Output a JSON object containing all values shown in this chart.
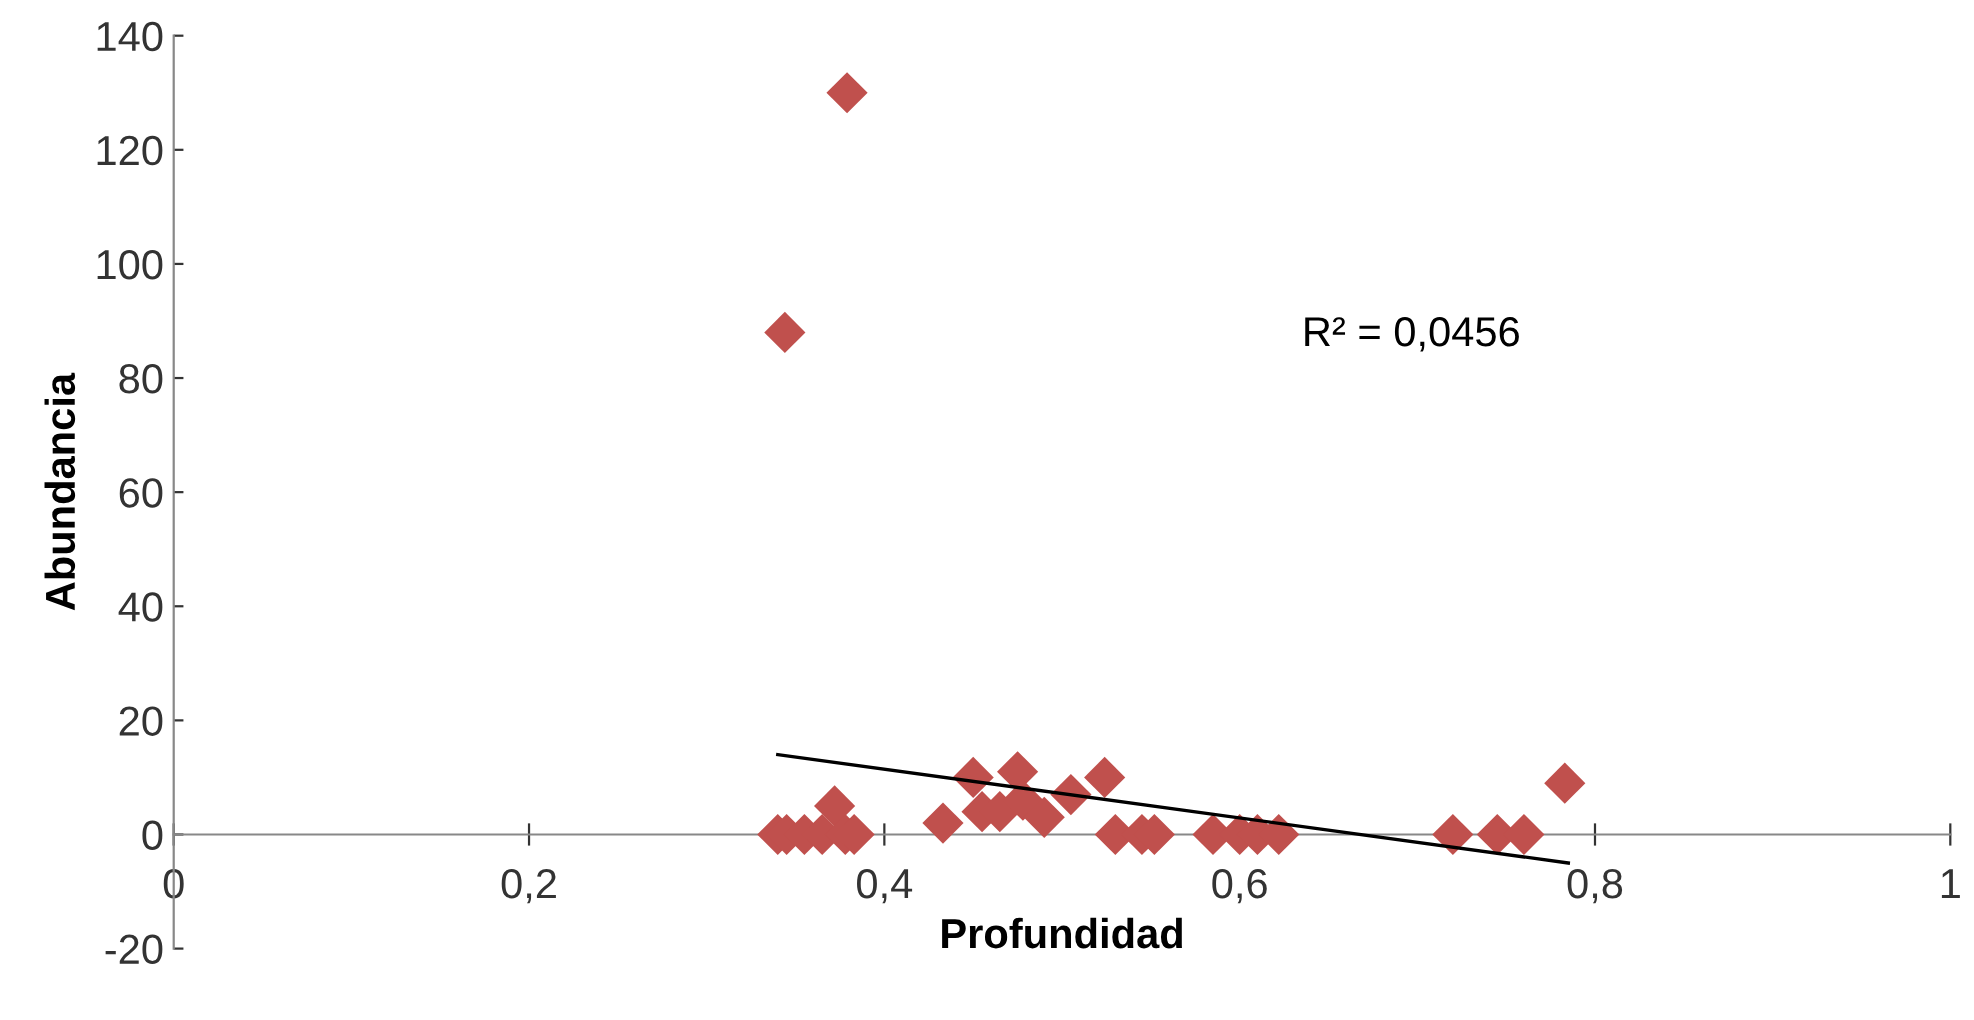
{
  "chart_data": {
    "type": "scatter",
    "xlabel": "Profundidad",
    "ylabel": "Abundancia",
    "annotations": [
      "R² = 0,0456"
    ],
    "xlim": [
      0,
      1
    ],
    "ylim": [
      -20,
      140
    ],
    "xticks": [
      {
        "value": 0,
        "label": "0"
      },
      {
        "value": 0.2,
        "label": "0,2"
      },
      {
        "value": 0.4,
        "label": "0,4"
      },
      {
        "value": 0.6,
        "label": "0,6"
      },
      {
        "value": 0.8,
        "label": "0,8"
      },
      {
        "value": 1,
        "label": "1"
      }
    ],
    "yticks": [
      -20,
      0,
      20,
      40,
      60,
      80,
      100,
      120,
      140
    ],
    "grid": false,
    "legend": false,
    "series": [
      {
        "marker": "diamond",
        "color": "#c0504d",
        "x": [
          0.34,
          0.345,
          0.355,
          0.365,
          0.372,
          0.378,
          0.383,
          0.344,
          0.379,
          0.433,
          0.45,
          0.455,
          0.465,
          0.475,
          0.478,
          0.49,
          0.505,
          0.524,
          0.53,
          0.545,
          0.552,
          0.585,
          0.6,
          0.61,
          0.622,
          0.72,
          0.745,
          0.76,
          0.783
        ],
        "values": [
          0,
          0,
          0,
          0,
          5,
          0,
          0,
          88,
          130,
          2,
          10,
          4,
          4,
          11,
          6,
          3,
          7,
          10,
          0,
          0,
          0,
          0,
          0,
          0,
          0,
          0,
          0,
          0,
          9
        ]
      },
      {
        "type": "line",
        "marker": "none",
        "color": "#000000",
        "x": [
          0.34,
          0.785
        ],
        "values": [
          14,
          -5
        ]
      }
    ]
  }
}
